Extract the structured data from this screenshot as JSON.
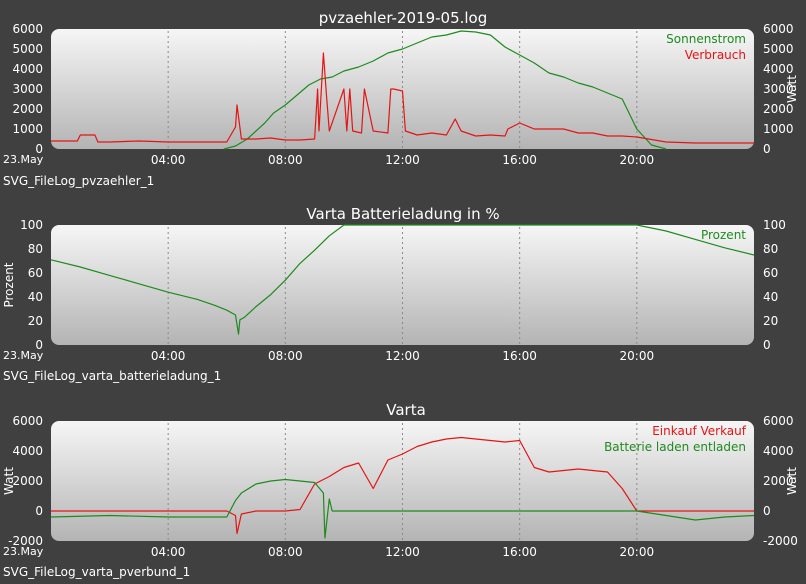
{
  "colors": {
    "background": "#404040",
    "plot_top": "#f6f6f6",
    "plot_bottom": "#b4b4b4",
    "green": "#1f8a1f",
    "red": "#e41414"
  },
  "chart_data": [
    {
      "type": "line",
      "title": "pvzaehler-2019-05.log",
      "caption": "SVG_FileLog_pvzaehler_1",
      "date_label": "23.May",
      "xlabel": "",
      "ylabel_left": "",
      "ylabel_right": "Watt",
      "x_unit": "hour",
      "xlim": [
        0,
        24
      ],
      "ylim": [
        0,
        6000
      ],
      "x_tick_labels": [
        "04:00",
        "08:00",
        "12:00",
        "16:00",
        "20:00"
      ],
      "y_tick_labels_left": [
        "0",
        "1000",
        "2000",
        "3000",
        "4000",
        "5000",
        "6000"
      ],
      "y_tick_labels_right": [
        "0",
        "1000",
        "2000",
        "3000",
        "4000",
        "5000",
        "6000"
      ],
      "grid": true,
      "legend_position": "top-right",
      "series": [
        {
          "name": "Sonnenstrom",
          "color": "#1f8a1f",
          "x": [
            5.9,
            6.3,
            6.7,
            7.0,
            7.3,
            7.6,
            8.0,
            8.4,
            8.8,
            9.2,
            9.6,
            10.0,
            10.5,
            11.0,
            11.5,
            12.0,
            12.5,
            13.0,
            13.5,
            14.0,
            14.5,
            15.0,
            15.5,
            16.0,
            16.5,
            17.0,
            17.5,
            18.0,
            18.5,
            19.0,
            19.5,
            20.0,
            20.5,
            21.0
          ],
          "y": [
            0,
            150,
            500,
            900,
            1300,
            1800,
            2200,
            2700,
            3200,
            3500,
            3600,
            3900,
            4100,
            4400,
            4800,
            5000,
            5300,
            5600,
            5700,
            5900,
            5850,
            5700,
            5100,
            4700,
            4300,
            3800,
            3600,
            3300,
            3100,
            2800,
            2500,
            1000,
            200,
            0
          ]
        },
        {
          "name": "Verbrauch",
          "color": "#e41414",
          "x": [
            0,
            0.9,
            1.0,
            1.5,
            1.6,
            2.0,
            3.0,
            4.0,
            5.0,
            6.0,
            6.3,
            6.35,
            6.5,
            7.0,
            7.5,
            8.0,
            8.5,
            9.0,
            9.1,
            9.15,
            9.3,
            9.4,
            9.5,
            10.0,
            10.1,
            10.2,
            10.3,
            10.6,
            10.7,
            11.0,
            11.5,
            11.6,
            11.7,
            12.0,
            12.1,
            12.5,
            13.0,
            13.5,
            13.8,
            14.0,
            14.5,
            15.0,
            15.5,
            15.6,
            16.0,
            16.5,
            17.0,
            17.5,
            18.0,
            18.5,
            19.0,
            19.5,
            20.0,
            21.0,
            22.0,
            23.0,
            24.0
          ],
          "y": [
            400,
            400,
            700,
            700,
            350,
            350,
            400,
            350,
            350,
            350,
            1100,
            2200,
            500,
            500,
            550,
            450,
            450,
            500,
            3000,
            900,
            4800,
            2800,
            900,
            3000,
            900,
            3000,
            900,
            800,
            3000,
            900,
            800,
            3000,
            3000,
            2900,
            900,
            700,
            800,
            700,
            1500,
            900,
            650,
            700,
            650,
            1000,
            1300,
            1000,
            1000,
            1000,
            800,
            800,
            650,
            650,
            600,
            350,
            300,
            300,
            300
          ]
        }
      ]
    },
    {
      "type": "line",
      "title": "Varta Batterieladung in %",
      "caption": "SVG_FileLog_varta_batterieladung_1",
      "date_label": "23.May",
      "xlabel": "",
      "ylabel_left": "Prozent",
      "ylabel_right": "",
      "x_unit": "hour",
      "xlim": [
        0,
        24
      ],
      "ylim": [
        0,
        100
      ],
      "x_tick_labels": [
        "04:00",
        "08:00",
        "12:00",
        "16:00",
        "20:00"
      ],
      "y_tick_labels_left": [
        "0",
        "20",
        "40",
        "60",
        "80",
        "100"
      ],
      "y_tick_labels_right": [
        "0",
        "20",
        "40",
        "60",
        "80",
        "100"
      ],
      "grid": true,
      "legend_position": "top-right",
      "series": [
        {
          "name": "Prozent",
          "color": "#1f8a1f",
          "x": [
            0,
            1.0,
            2.0,
            3.0,
            4.0,
            5.0,
            5.6,
            6.0,
            6.3,
            6.4,
            6.45,
            6.6,
            7.0,
            7.5,
            8.0,
            8.5,
            9.0,
            9.5,
            10.0,
            12.0,
            16.0,
            20.0,
            21.0,
            22.0,
            23.0,
            24.0
          ],
          "y": [
            71,
            65,
            58,
            51,
            44,
            38,
            33,
            29,
            25,
            9,
            21,
            23,
            32,
            42,
            54,
            68,
            79,
            91,
            100,
            100,
            100,
            100,
            95,
            88,
            81,
            75
          ]
        }
      ]
    },
    {
      "type": "line",
      "title": "Varta",
      "caption": "SVG_FileLog_varta_pverbund_1",
      "date_label": "23.May",
      "xlabel": "",
      "ylabel_left": "Watt",
      "ylabel_right": "Watt",
      "x_unit": "hour",
      "xlim": [
        0,
        24
      ],
      "ylim": [
        -2000,
        6000
      ],
      "x_tick_labels": [
        "04:00",
        "08:00",
        "12:00",
        "16:00",
        "20:00"
      ],
      "y_tick_labels_left": [
        "-2000",
        "0",
        "2000",
        "4000",
        "6000"
      ],
      "y_tick_labels_right": [
        "-2000",
        "0",
        "2000",
        "4000",
        "6000"
      ],
      "grid": true,
      "legend_position": "top-right",
      "series": [
        {
          "name": "Einkauf Verkauf",
          "color": "#e41414",
          "x": [
            0,
            5.0,
            6.0,
            6.3,
            6.35,
            6.5,
            7.0,
            8.0,
            8.5,
            9.0,
            9.5,
            10.0,
            10.5,
            11.0,
            11.5,
            12.0,
            12.5,
            13.0,
            13.5,
            14.0,
            14.5,
            15.0,
            15.5,
            16.0,
            16.5,
            17.0,
            17.5,
            18.0,
            18.5,
            19.0,
            19.5,
            20.0,
            21.0,
            22.0,
            24.0
          ],
          "y": [
            0,
            0,
            0,
            -300,
            -1500,
            -200,
            0,
            0,
            100,
            1800,
            2300,
            2900,
            3200,
            1500,
            3400,
            3800,
            4300,
            4600,
            4800,
            4900,
            4800,
            4700,
            4600,
            4700,
            2900,
            2600,
            2700,
            2800,
            2700,
            2600,
            1500,
            0,
            0,
            0,
            0
          ]
        },
        {
          "name": "Batterie laden entladen",
          "color": "#1f8a1f",
          "x": [
            0,
            2.0,
            4.0,
            6.0,
            6.3,
            6.5,
            7.0,
            7.5,
            8.0,
            8.5,
            9.0,
            9.3,
            9.35,
            9.5,
            9.6,
            10.0,
            12.0,
            16.0,
            19.0,
            20.0,
            21.0,
            22.0,
            23.0,
            24.0
          ],
          "y": [
            -400,
            -300,
            -400,
            -400,
            700,
            1200,
            1800,
            2000,
            2100,
            2000,
            1900,
            1200,
            -1800,
            800,
            0,
            0,
            0,
            0,
            0,
            0,
            -300,
            -600,
            -400,
            -300
          ]
        }
      ]
    }
  ]
}
